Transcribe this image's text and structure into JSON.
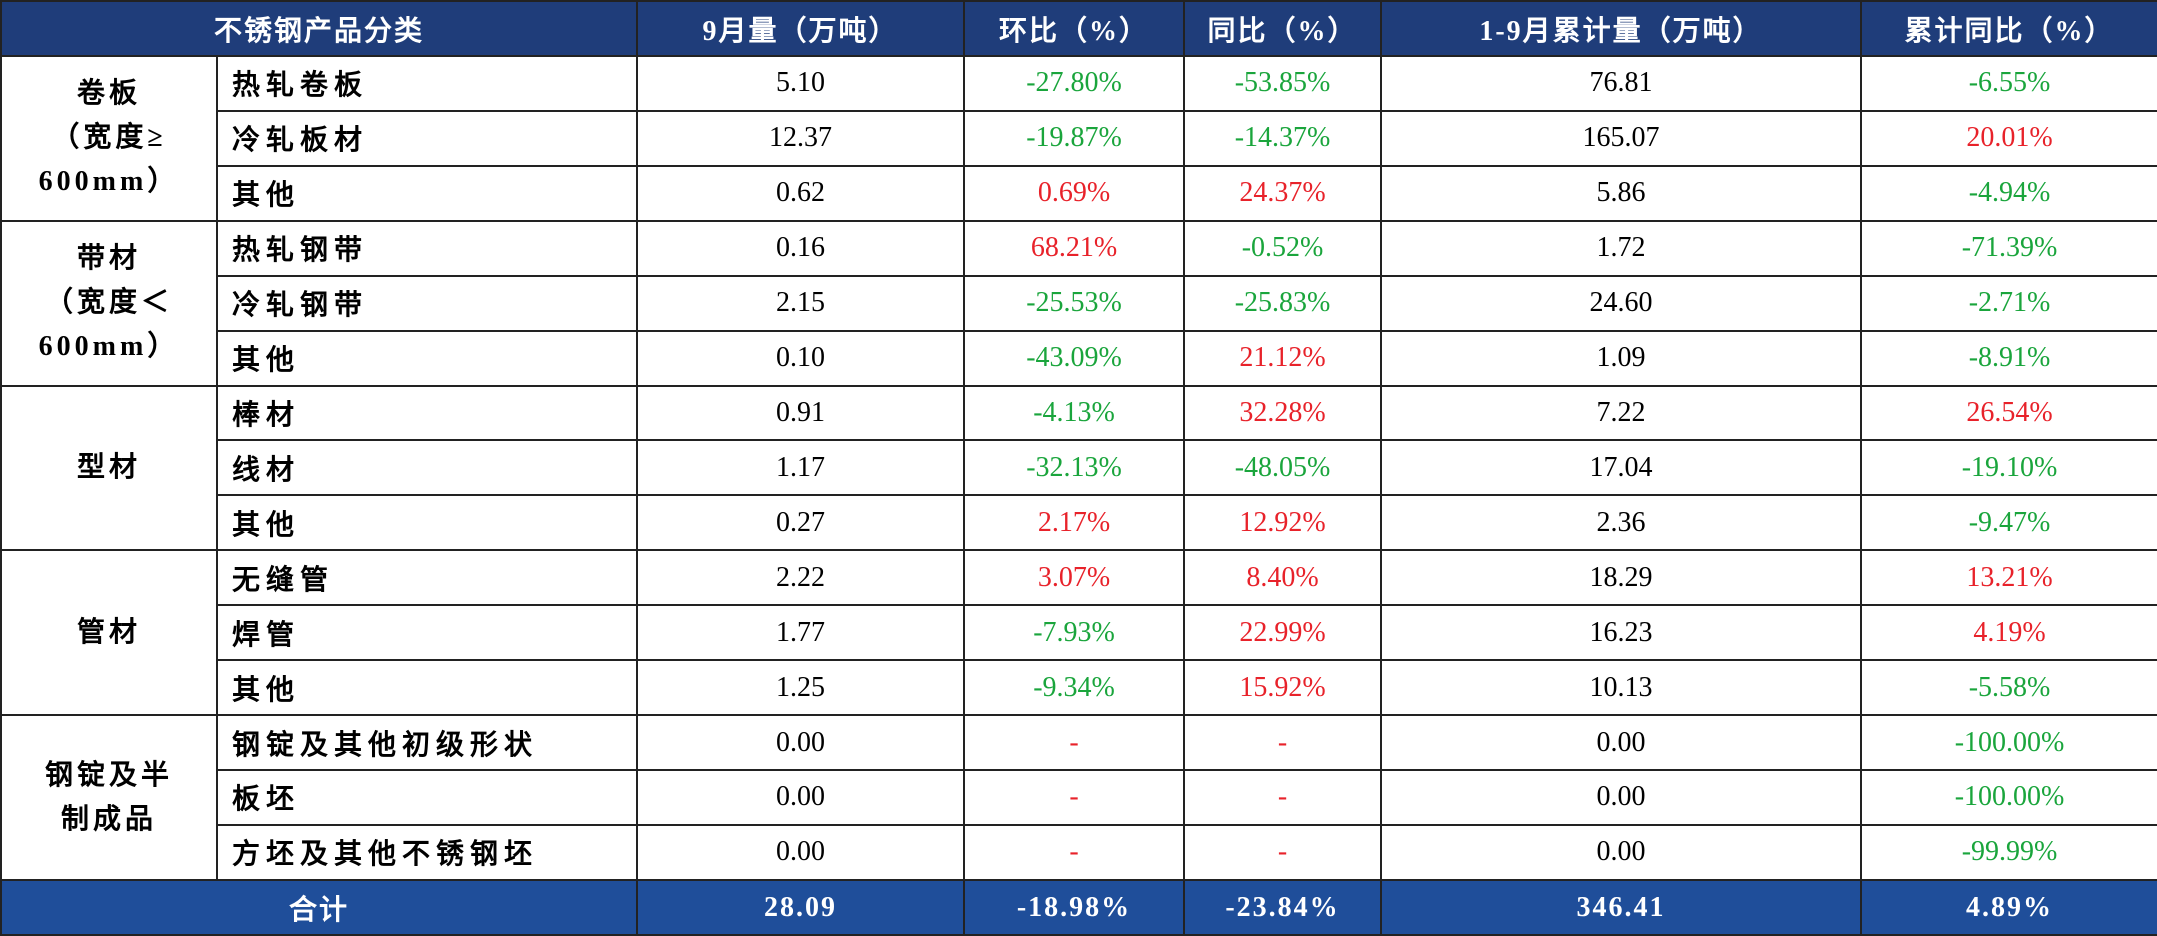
{
  "table": {
    "header": [
      "不锈钢产品分类",
      "9月量（万吨）",
      "环比（%）",
      "同比（%）",
      "1-9月累计量（万吨）",
      "累计同比（%）"
    ],
    "groups": [
      {
        "name": [
          "卷板",
          "（宽度≥",
          "600mm）"
        ],
        "rows": [
          [
            "热轧卷板",
            "5.10",
            "-27.80%",
            "-53.85%",
            "76.81",
            "-6.55%"
          ],
          [
            "冷轧板材",
            "12.37",
            "-19.87%",
            "-14.37%",
            "165.07",
            "20.01%"
          ],
          [
            "其他",
            "0.62",
            "0.69%",
            "24.37%",
            "5.86",
            "-4.94%"
          ]
        ]
      },
      {
        "name": [
          "带材",
          "（宽度＜",
          "600mm）"
        ],
        "rows": [
          [
            "热轧钢带",
            "0.16",
            "68.21%",
            "-0.52%",
            "1.72",
            "-71.39%"
          ],
          [
            "冷轧钢带",
            "2.15",
            "-25.53%",
            "-25.83%",
            "24.60",
            "-2.71%"
          ],
          [
            "其他",
            "0.10",
            "-43.09%",
            "21.12%",
            "1.09",
            "-8.91%"
          ]
        ]
      },
      {
        "name": [
          "型材"
        ],
        "rows": [
          [
            "棒材",
            "0.91",
            "-4.13%",
            "32.28%",
            "7.22",
            "26.54%"
          ],
          [
            "线材",
            "1.17",
            "-32.13%",
            "-48.05%",
            "17.04",
            "-19.10%"
          ],
          [
            "其他",
            "0.27",
            "2.17%",
            "12.92%",
            "2.36",
            "-9.47%"
          ]
        ]
      },
      {
        "name": [
          "管材"
        ],
        "rows": [
          [
            "无缝管",
            "2.22",
            "3.07%",
            "8.40%",
            "18.29",
            "13.21%"
          ],
          [
            "焊管",
            "1.77",
            "-7.93%",
            "22.99%",
            "16.23",
            "4.19%"
          ],
          [
            "其他",
            "1.25",
            "-9.34%",
            "15.92%",
            "10.13",
            "-5.58%"
          ]
        ]
      },
      {
        "name": [
          "钢锭及半",
          "制成品"
        ],
        "rows": [
          [
            "钢锭及其他初级形状",
            "0.00",
            "-",
            "-",
            "0.00",
            "-100.00%"
          ],
          [
            "板坯",
            "0.00",
            "-",
            "-",
            "0.00",
            "-100.00%"
          ],
          [
            "方坯及其他不锈钢坯",
            "0.00",
            "-",
            "-",
            "0.00",
            "-99.99%"
          ]
        ]
      }
    ],
    "total": [
      "合计",
      "28.09",
      "-18.98%",
      "-23.84%",
      "346.41",
      "4.89%"
    ]
  }
}
